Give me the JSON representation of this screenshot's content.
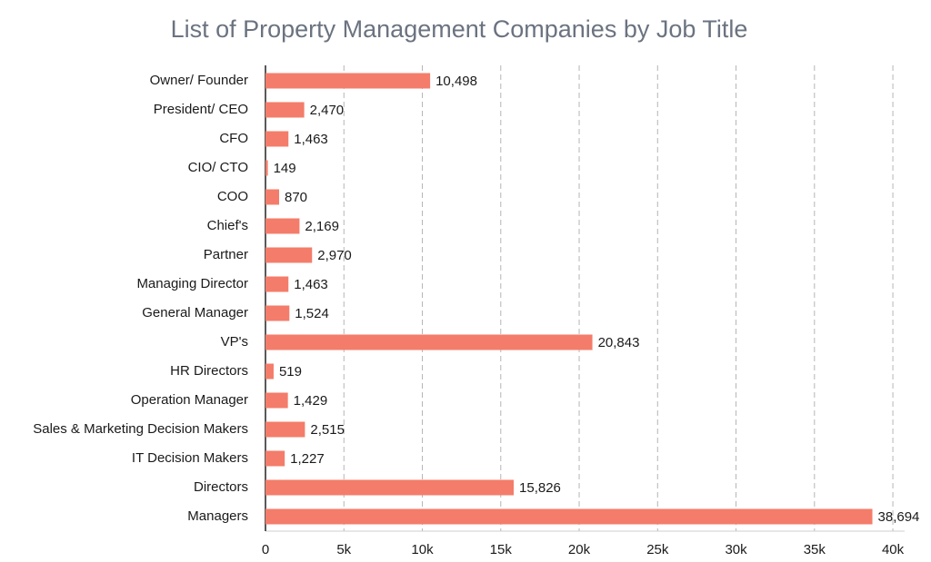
{
  "chart_data": {
    "type": "bar",
    "orientation": "horizontal",
    "title": "List of Property Management Companies by Job Title",
    "categories": [
      "Owner/ Founder",
      "President/ CEO",
      "CFO",
      "CIO/ CTO",
      "COO",
      "Chief's",
      "Partner",
      "Managing Director",
      "General Manager",
      "VP's",
      "HR Directors",
      "Operation Manager",
      "Sales & Marketing Decision Makers",
      "IT Decision Makers",
      "Directors",
      "Managers"
    ],
    "values": [
      10498,
      2470,
      1463,
      149,
      870,
      2169,
      2970,
      1463,
      1524,
      20843,
      519,
      1429,
      2515,
      1227,
      15826,
      38694
    ],
    "value_labels": [
      "10,498",
      "2,470",
      "1,463",
      "149",
      "870",
      "2,169",
      "2,970",
      "1,463",
      "1,524",
      "20,843",
      "519",
      "1,429",
      "2,515",
      "1,227",
      "15,826",
      "38,694"
    ],
    "color": "#f47c6a",
    "xlim": [
      0,
      40750
    ],
    "xticks": [
      0,
      {
        "value": 5000,
        "label": "5k"
      },
      {
        "value": 10000,
        "label": "10k"
      },
      {
        "value": 15000,
        "label": "15k"
      },
      {
        "value": 20000,
        "label": "20k"
      },
      {
        "value": 25000,
        "label": "25k"
      },
      {
        "value": 30000,
        "label": "30k"
      },
      {
        "value": 35000,
        "label": "35k"
      },
      {
        "value": 40000,
        "label": "40k"
      }
    ],
    "grid": true
  }
}
